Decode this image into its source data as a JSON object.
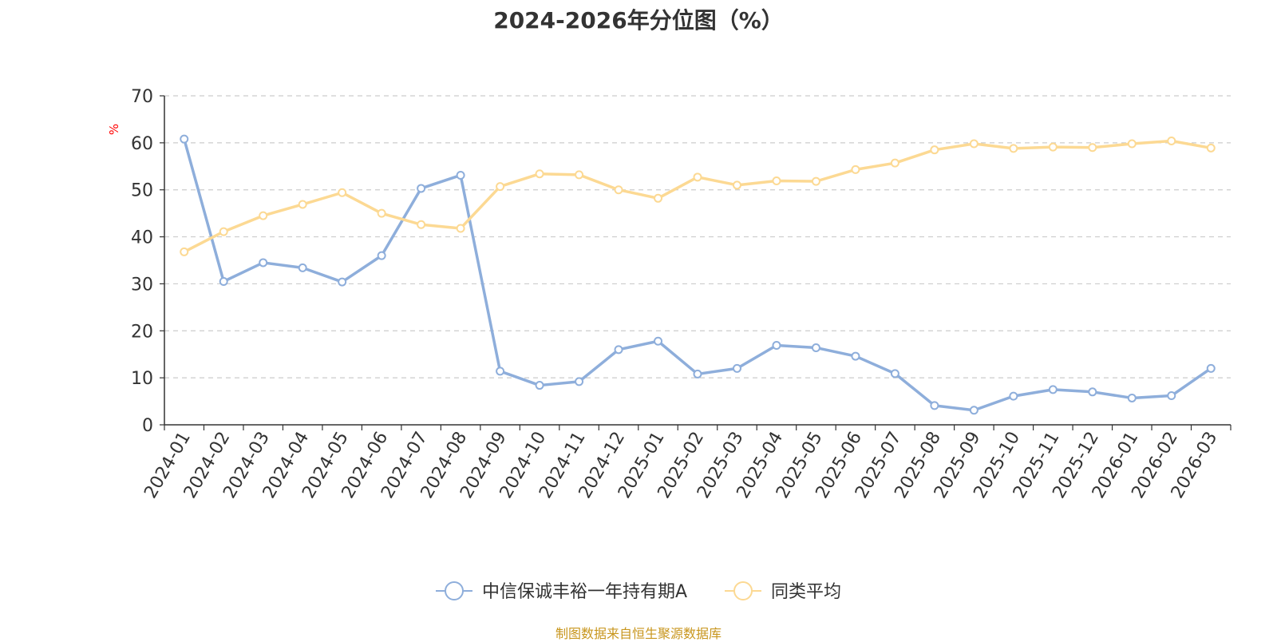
{
  "chart_data": {
    "type": "line",
    "title": "2024-2026年分位图（%）",
    "ylabel": "%",
    "xlabel": "",
    "ylim": [
      0,
      70
    ],
    "yticks": [
      0,
      10,
      20,
      30,
      40,
      50,
      60,
      70
    ],
    "grid": "horizontal dashed",
    "legend_position": "bottom-center",
    "categories": [
      "2024-01",
      "2024-02",
      "2024-03",
      "2024-04",
      "2024-05",
      "2024-06",
      "2024-07",
      "2024-08",
      "2024-09",
      "2024-10",
      "2024-11",
      "2024-12",
      "2025-01",
      "2025-02",
      "2025-03",
      "2025-04",
      "2025-05",
      "2025-06",
      "2025-07",
      "2025-08",
      "2025-09",
      "2025-10",
      "2025-11",
      "2025-12",
      "2026-01",
      "2026-02",
      "2026-03"
    ],
    "series": [
      {
        "name": "中信保诚丰裕一年持有期A",
        "color": "#8eaedb",
        "values": [
          60.8,
          30.5,
          34.5,
          33.4,
          30.4,
          36.0,
          50.3,
          53.1,
          11.4,
          8.4,
          9.2,
          16.0,
          17.8,
          10.8,
          12.0,
          16.9,
          16.4,
          14.6,
          10.9,
          4.1,
          3.1,
          6.1,
          7.5,
          7.0,
          5.7,
          6.2,
          12.0
        ]
      },
      {
        "name": "同类平均",
        "color": "#fcd993",
        "values": [
          36.8,
          41.1,
          44.5,
          46.9,
          49.4,
          45.0,
          42.6,
          41.8,
          50.7,
          53.4,
          53.2,
          50.0,
          48.2,
          52.7,
          51.0,
          51.9,
          51.8,
          54.3,
          55.7,
          58.5,
          59.8,
          58.8,
          59.1,
          59.0,
          59.8,
          60.4,
          58.9
        ]
      }
    ]
  },
  "source_note": "制图数据来自恒生聚源数据库"
}
